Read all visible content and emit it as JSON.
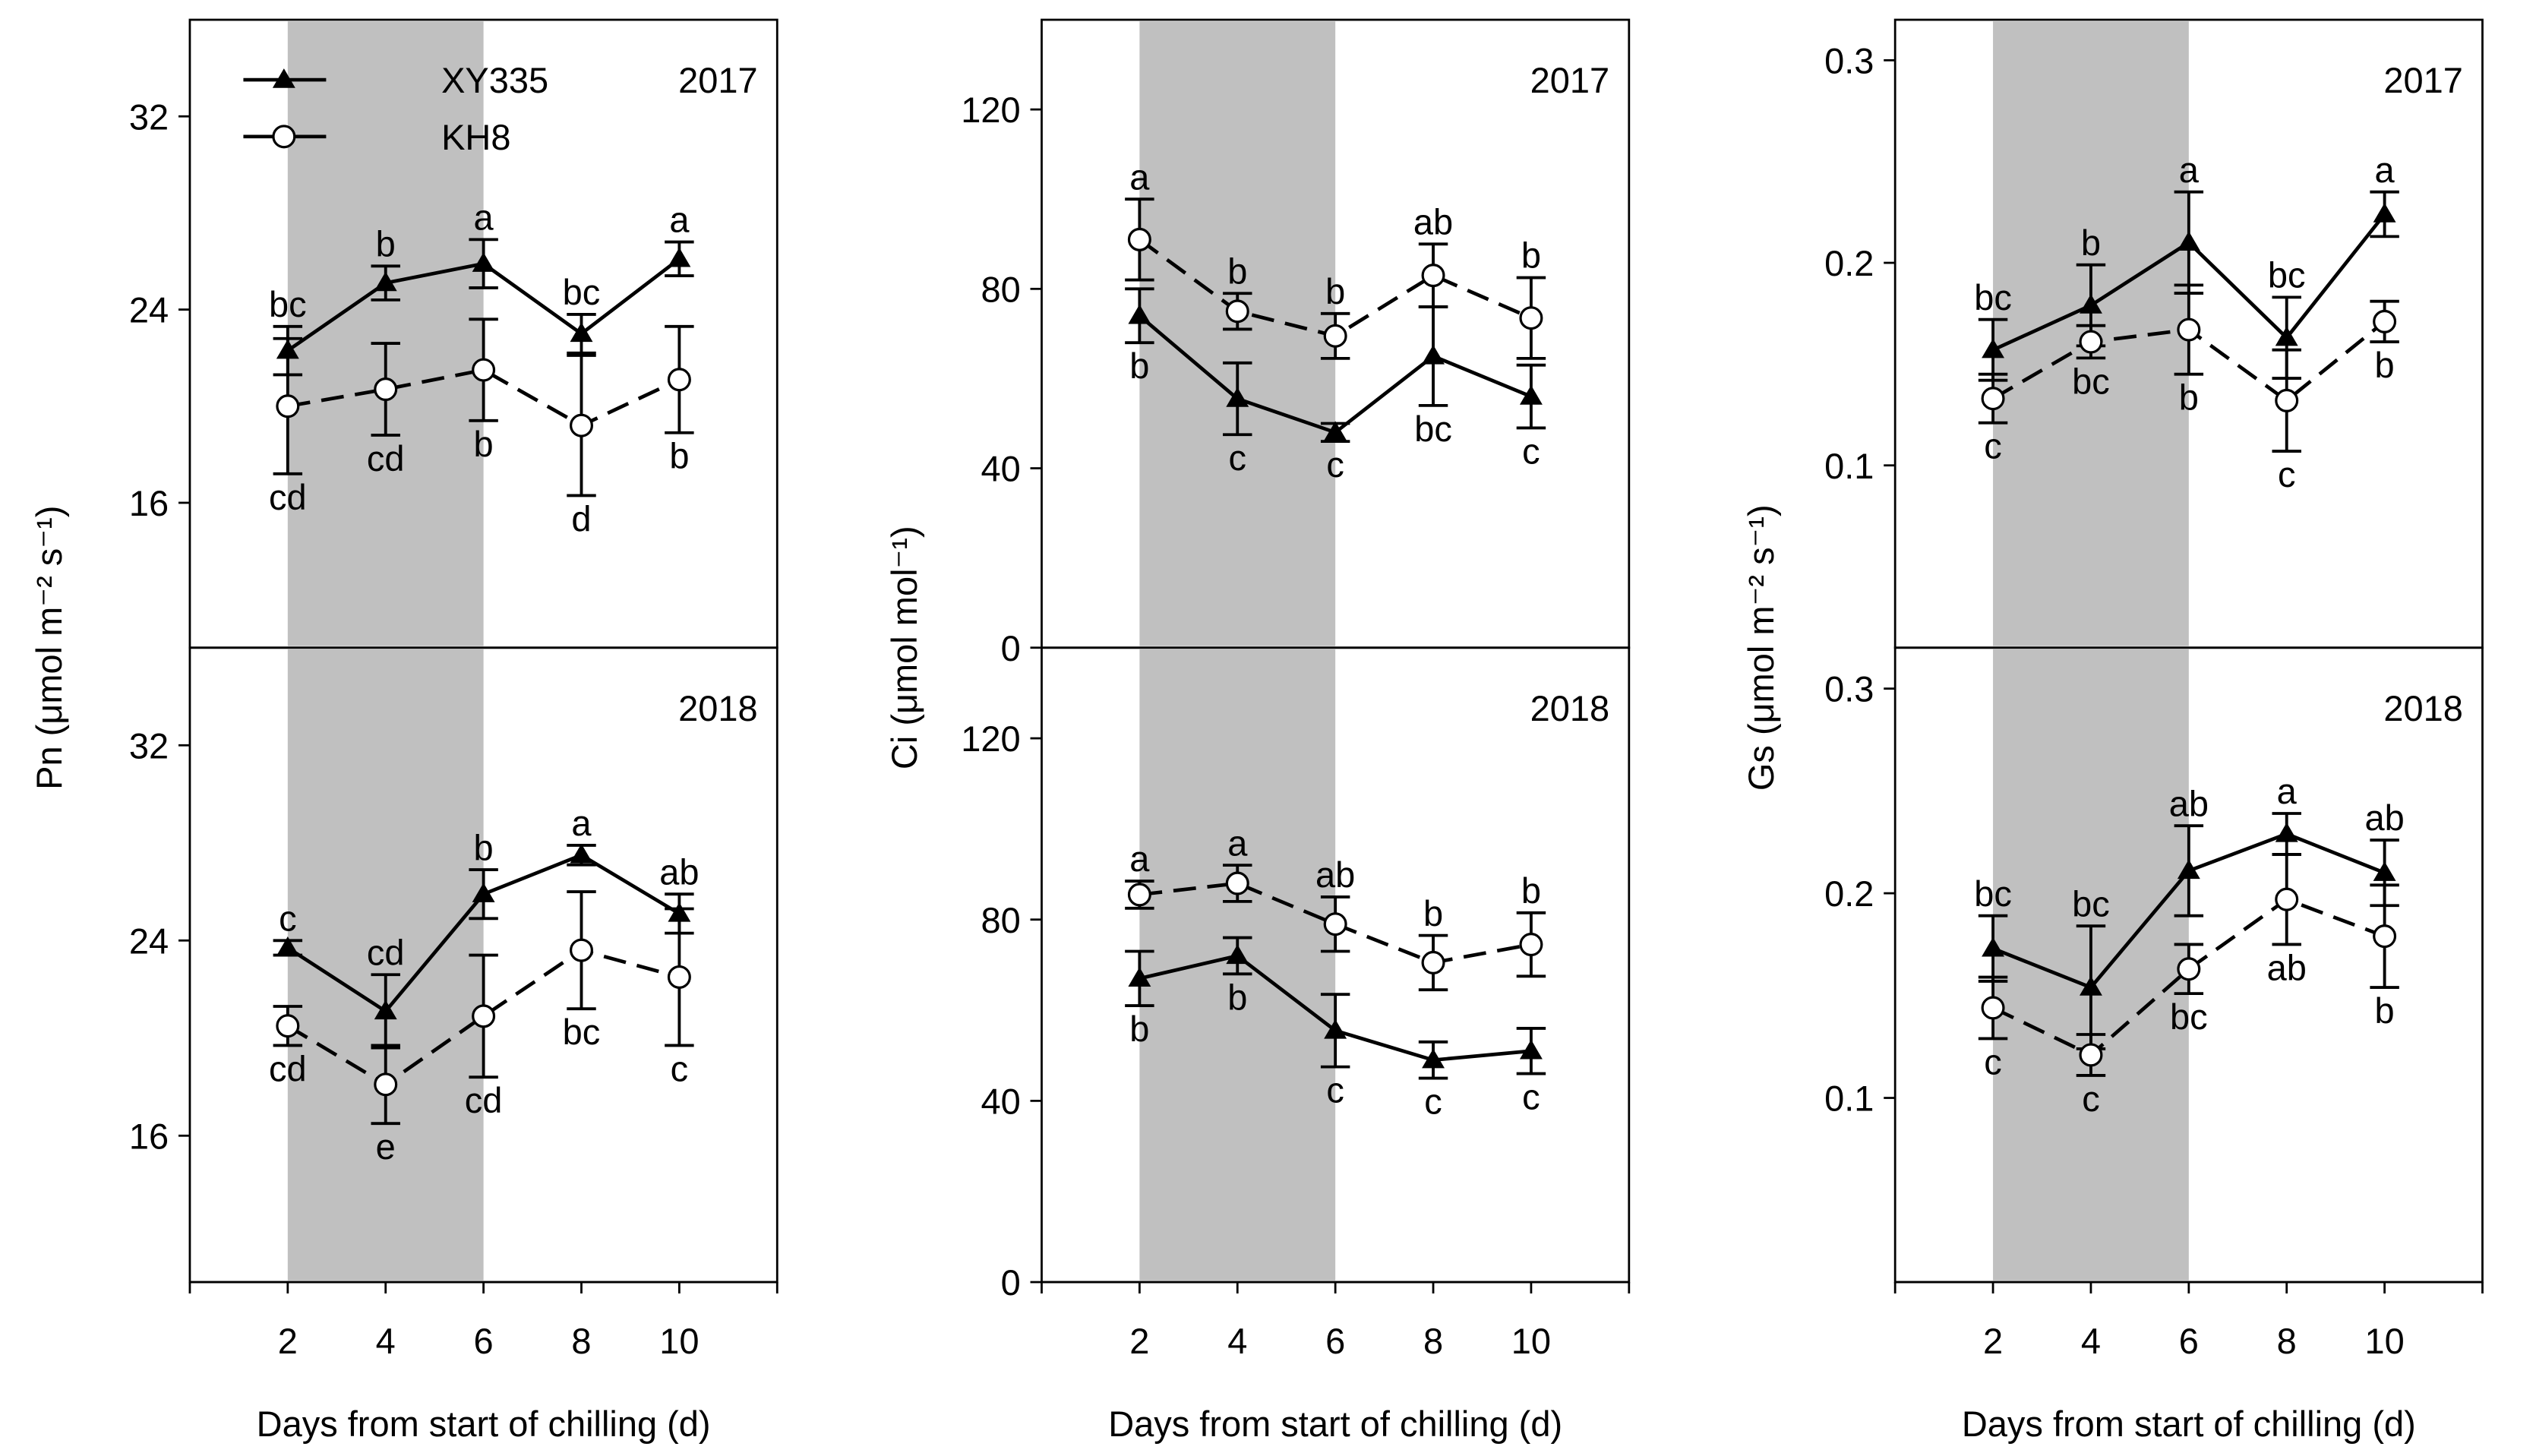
{
  "chart_data": {
    "type": "line",
    "xlabel": "Days from start of chilling (d)",
    "x": [
      2,
      4,
      6,
      8,
      10
    ],
    "x_ticks": [
      "2",
      "4",
      "6",
      "8",
      "10"
    ],
    "xlim": [
      0,
      12
    ],
    "shaded_interval": [
      2,
      6
    ],
    "shade_color": "#c0c0c0",
    "legend": [
      {
        "name": "XY335",
        "marker": "filled-triangle",
        "line": "solid"
      },
      {
        "name": "KH8",
        "marker": "open-circle",
        "line": "dashed"
      }
    ],
    "panels": [
      {
        "id": "pn",
        "year": "2017",
        "ylabel": "Pn (μmol m⁻² s⁻¹)",
        "ylim": [
          10,
          36
        ],
        "yticks": [
          "16",
          "24",
          "32"
        ],
        "ytick_values": [
          16,
          24,
          32
        ],
        "series": [
          {
            "name": "XY335",
            "values": [
              22.3,
              25.1,
              25.9,
              23.0,
              26.1
            ],
            "se": [
              1.0,
              0.7,
              1.0,
              0.8,
              0.7
            ],
            "letters": [
              "bc",
              "b",
              "a",
              "bc",
              "a"
            ]
          },
          {
            "name": "KH8",
            "values": [
              20.0,
              20.7,
              21.5,
              19.2,
              21.1
            ],
            "se": [
              2.8,
              1.9,
              2.1,
              2.9,
              2.2
            ],
            "letters": [
              "cd",
              "cd",
              "b",
              "d",
              "b"
            ]
          }
        ]
      },
      {
        "id": "ci",
        "year": "2017",
        "ylabel": "Ci (μmol mol⁻¹)",
        "ylim": [
          0,
          140
        ],
        "yticks": [
          "0",
          "40",
          "80",
          "120"
        ],
        "ytick_values": [
          0,
          40,
          80,
          120
        ],
        "series": [
          {
            "name": "XY335",
            "values": [
              74,
              55.5,
              48,
              65,
              56
            ],
            "se": [
              6,
              8,
              2,
              11,
              7
            ],
            "letters": [
              "b",
              "c",
              "c",
              "bc",
              "c"
            ]
          },
          {
            "name": "KH8",
            "values": [
              91,
              75,
              69.5,
              83,
              73.5
            ],
            "se": [
              9,
              4,
              5,
              7,
              9
            ],
            "letters": [
              "a",
              "b",
              "b",
              "ab",
              "b"
            ]
          }
        ]
      },
      {
        "id": "gs",
        "year": "2017",
        "ylabel": "Gs (μmol m⁻² s⁻¹)",
        "ylim": [
          0.01,
          0.32
        ],
        "yticks": [
          "0.1",
          "0.2",
          "0.3"
        ],
        "ytick_values": [
          0.1,
          0.2,
          0.3
        ],
        "series": [
          {
            "name": "XY335",
            "values": [
              0.157,
              0.179,
              0.21,
              0.163,
              0.224
            ],
            "se": [
              0.015,
              0.02,
              0.025,
              0.02,
              0.011
            ],
            "letters": [
              "bc",
              "b",
              "a",
              "bc",
              "a"
            ]
          },
          {
            "name": "KH8",
            "values": [
              0.133,
              0.161,
              0.167,
              0.132,
              0.171
            ],
            "se": [
              0.012,
              0.008,
              0.022,
              0.025,
              0.01
            ],
            "letters": [
              "c",
              "bc",
              "b",
              "c",
              "b"
            ]
          }
        ]
      },
      {
        "id": "pn",
        "year": "2018",
        "ylim": [
          10,
          36
        ],
        "yticks": [
          "16",
          "24",
          "32"
        ],
        "ytick_values": [
          16,
          24,
          32
        ],
        "series": [
          {
            "name": "XY335",
            "values": [
              23.7,
              21.1,
              25.9,
              27.5,
              25.1
            ],
            "se": [
              0.3,
              1.5,
              1.0,
              0.4,
              0.8
            ],
            "letters": [
              "c",
              "cd",
              "b",
              "a",
              "ab"
            ]
          },
          {
            "name": "KH8",
            "values": [
              20.5,
              18.1,
              20.9,
              23.6,
              22.5
            ],
            "se": [
              0.8,
              1.6,
              2.5,
              2.4,
              2.8
            ],
            "letters": [
              "cd",
              "e",
              "cd",
              "bc",
              "c"
            ]
          }
        ]
      },
      {
        "id": "ci",
        "year": "2018",
        "ylim": [
          0,
          140
        ],
        "yticks": [
          "0",
          "40",
          "80",
          "120"
        ],
        "ytick_values": [
          0,
          40,
          80,
          120
        ],
        "series": [
          {
            "name": "XY335",
            "values": [
              67,
              72,
              55.5,
              49,
              51
            ],
            "se": [
              6,
              4,
              8,
              4,
              5
            ],
            "letters": [
              "b",
              "b",
              "c",
              "c",
              "c"
            ]
          },
          {
            "name": "KH8",
            "values": [
              85.5,
              88,
              79,
              70.5,
              74.5
            ],
            "se": [
              3,
              4,
              6,
              6,
              7
            ],
            "letters": [
              "a",
              "a",
              "ab",
              "b",
              "b"
            ]
          }
        ]
      },
      {
        "id": "gs",
        "year": "2018",
        "ylim": [
          0.01,
          0.32
        ],
        "yticks": [
          "0.1",
          "0.2",
          "0.3"
        ],
        "ytick_values": [
          0.1,
          0.2,
          0.3
        ],
        "series": [
          {
            "name": "XY335",
            "values": [
              0.173,
              0.154,
              0.211,
              0.229,
              0.21
            ],
            "se": [
              0.016,
              0.03,
              0.022,
              0.01,
              0.016
            ],
            "letters": [
              "bc",
              "bc",
              "ab",
              "a",
              "ab"
            ]
          },
          {
            "name": "KH8",
            "values": [
              0.144,
              0.121,
              0.163,
              0.197,
              0.179
            ],
            "se": [
              0.015,
              0.01,
              0.012,
              0.022,
              0.025
            ],
            "letters": [
              "c",
              "c",
              "bc",
              "ab",
              "b"
            ]
          }
        ]
      }
    ]
  }
}
